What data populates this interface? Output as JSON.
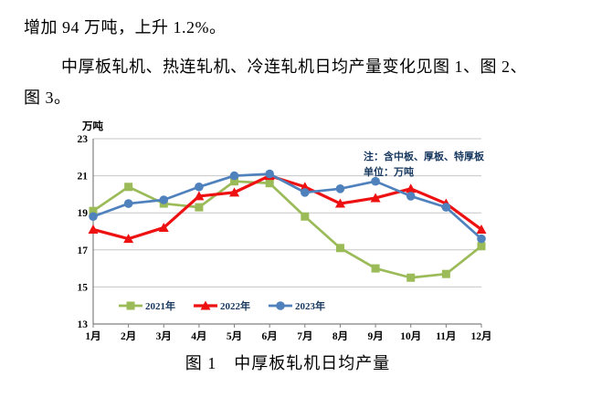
{
  "document": {
    "paragraph1": "增加 94 万吨，上升 1.2%。",
    "paragraph2_line1": "中厚板轧机、热连轧机、冷连轧机日均产量变化见图 1、图 2、",
    "paragraph2_line2": "图 3。",
    "figure_caption": "图 1　中厚板轧机日均产量"
  },
  "chart_data": {
    "type": "line",
    "title": "图 1 中厚板轧机日均产量",
    "unit_label": "万吨",
    "annotations": [
      "注：含中板、厚板、特厚板",
      "单位：万吨"
    ],
    "categories": [
      "1月",
      "2月",
      "3月",
      "4月",
      "5月",
      "6月",
      "7月",
      "8月",
      "9月",
      "10月",
      "11月",
      "12月"
    ],
    "series": [
      {
        "name": "2021年",
        "color": "#9BBB59",
        "marker": "square",
        "values": [
          19.1,
          20.4,
          19.5,
          19.3,
          20.7,
          20.6,
          18.8,
          17.1,
          16.0,
          15.5,
          15.7,
          17.2
        ]
      },
      {
        "name": "2022年",
        "color": "#EE1111",
        "marker": "triangle",
        "values": [
          18.1,
          17.6,
          18.2,
          19.9,
          20.1,
          21.0,
          20.4,
          19.5,
          19.8,
          20.3,
          19.5,
          18.1
        ]
      },
      {
        "name": "2023年",
        "color": "#4F81BD",
        "marker": "circle",
        "values": [
          18.8,
          19.5,
          19.7,
          20.4,
          21.0,
          21.1,
          20.1,
          20.3,
          20.7,
          19.9,
          19.3,
          17.6
        ]
      }
    ],
    "ylim": [
      13,
      23
    ],
    "yticks": [
      23,
      21,
      19,
      17,
      15,
      13
    ],
    "grid": true,
    "legend_position": "bottom-left-inside",
    "colors": {
      "grid": "#C6C6C6",
      "axis": "#808080",
      "tick_text": "#000000",
      "note_text": "#17375E",
      "legend_text": "#17375E"
    }
  }
}
